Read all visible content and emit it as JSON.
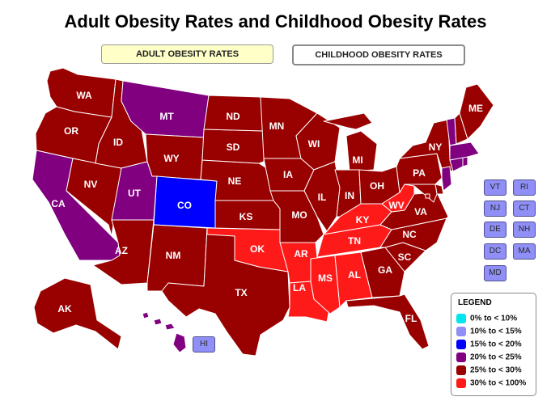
{
  "title": "Adult Obesity Rates and Childhood Obesity Rates",
  "tabs": [
    {
      "label": "ADULT OBESITY RATES",
      "active": true
    },
    {
      "label": "CHILDHOOD OBESITY RATES",
      "active": false
    }
  ],
  "colors": {
    "c0": "#00e5ee",
    "c1": "#8f8ff7",
    "c2": "#0000ff",
    "c3": "#800080",
    "c4": "#990000",
    "c5": "#ff1a1a"
  },
  "states": {
    "WA": "c4",
    "OR": "c4",
    "CA": "c3",
    "NV": "c4",
    "ID": "c4",
    "MT": "c3",
    "WY": "c4",
    "UT": "c3",
    "CO": "c2",
    "AZ": "c4",
    "NM": "c4",
    "TX": "c4",
    "OK": "c5",
    "KS": "c4",
    "NE": "c4",
    "SD": "c4",
    "ND": "c4",
    "MN": "c4",
    "IA": "c4",
    "MO": "c4",
    "AR": "c5",
    "LA": "c5",
    "WI": "c4",
    "IL": "c4",
    "MI": "c4",
    "IN": "c4",
    "OH": "c4",
    "KY": "c5",
    "TN": "c5",
    "MS": "c5",
    "AL": "c5",
    "GA": "c4",
    "FL": "c4",
    "SC": "c4",
    "NC": "c4",
    "VA": "c4",
    "WV": "c5",
    "PA": "c4",
    "NY": "c4",
    "ME": "c4",
    "AK": "c4",
    "HI": "c3",
    "NJ": "c3",
    "MA": "c3",
    "CT": "c3",
    "RI": "c3",
    "NH": "c4",
    "VT": "c3",
    "DE": "c4",
    "MD": "c4",
    "DC": "c4"
  },
  "small_states": [
    "VT",
    "RI",
    "NJ",
    "CT",
    "DE",
    "NH",
    "DC",
    "MA",
    "MD",
    "HI"
  ],
  "legend": {
    "title": "LEGEND",
    "items": [
      {
        "label": "0% to < 10%",
        "color": "#00e5ee"
      },
      {
        "label": "10% to < 15%",
        "color": "#8f8ff7"
      },
      {
        "label": "15% to < 20%",
        "color": "#0000ff"
      },
      {
        "label": "20% to < 25%",
        "color": "#800080"
      },
      {
        "label": "25% to < 30%",
        "color": "#990000"
      },
      {
        "label": "30% to < 100%",
        "color": "#ff1a1a"
      }
    ]
  }
}
